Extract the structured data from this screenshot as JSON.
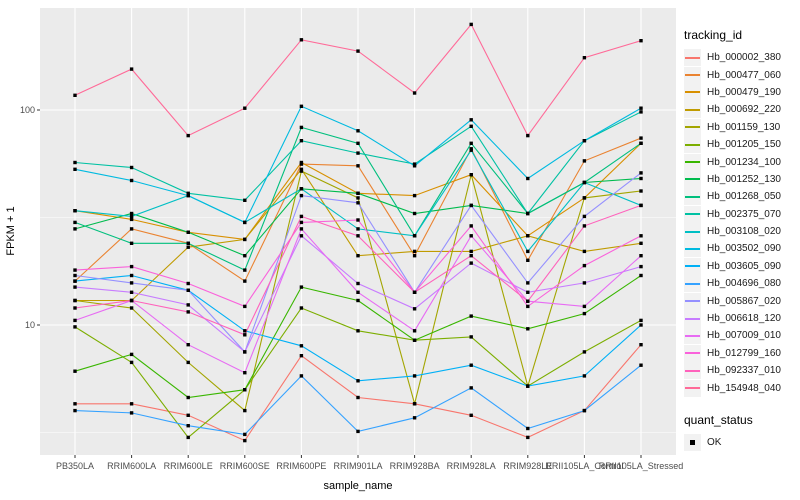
{
  "chart_data": {
    "type": "line",
    "title": "",
    "xlabel": "sample_name",
    "ylabel": "FPKM + 1",
    "x_categories": [
      "PB350LA",
      "RRIM600LA",
      "RRIM600LE",
      "RRIM600SE",
      "RRIM600PE",
      "RRIM901LA",
      "RRIM928BA",
      "RRIM928LA",
      "RRIM928LE",
      "RRII105LA_Control",
      "RRII105LA_Stressed"
    ],
    "y_scale": "log10",
    "y_ticks": [
      10,
      100
    ],
    "y_minor_ticks": [
      3.162,
      31.62
    ],
    "y_range": [
      2.5,
      300
    ],
    "grid": true,
    "legend_position": "right",
    "legend_title": "tracking_id",
    "point": {
      "shape": "square",
      "color": "#000000",
      "size": 3.4
    },
    "panel_color": "#EBEBEB",
    "grid_color": "#FFFFFF",
    "legend_key_color": "#F2F2F2",
    "series": [
      {
        "name": "Hb_000002_380",
        "color": "#F8766D",
        "values": [
          4.3,
          4.3,
          3.8,
          2.9,
          7.2,
          4.6,
          4.3,
          3.8,
          3.0,
          4.0,
          8.1
        ]
      },
      {
        "name": "Hb_000477_060",
        "color": "#EA8331",
        "values": [
          16,
          28,
          24,
          16,
          56,
          55,
          21,
          66,
          20,
          58,
          74
        ]
      },
      {
        "name": "Hb_000479_190",
        "color": "#D89000",
        "values": [
          34,
          31,
          27,
          25,
          57,
          41,
          40,
          50,
          26,
          39,
          70
        ]
      },
      {
        "name": "Hb_000692_220",
        "color": "#C09B00",
        "values": [
          13,
          13,
          23,
          25,
          53,
          21,
          22,
          22,
          26,
          22,
          24
        ]
      },
      {
        "name": "Hb_001159_130",
        "color": "#A3A500",
        "values": [
          13,
          12,
          6.7,
          4.0,
          52,
          39,
          4.3,
          50,
          5.2,
          39,
          42
        ]
      },
      {
        "name": "Hb_001205_150",
        "color": "#7CAE00",
        "values": [
          9.8,
          6.7,
          3.0,
          5.0,
          12,
          9.4,
          8.5,
          8.8,
          5.2,
          7.5,
          10.5
        ]
      },
      {
        "name": "Hb_001234_100",
        "color": "#39B600",
        "values": [
          6.1,
          7.3,
          4.6,
          5.0,
          15,
          13,
          8.5,
          11,
          9.6,
          11.3,
          17
        ]
      },
      {
        "name": "Hb_001252_130",
        "color": "#00BB4E",
        "values": [
          28,
          33,
          27,
          21,
          43,
          41,
          33,
          36,
          33,
          46,
          48
        ]
      },
      {
        "name": "Hb_001268_050",
        "color": "#00BF7D",
        "values": [
          30,
          24,
          24,
          18,
          83,
          70,
          26,
          70,
          33,
          46,
          70
        ]
      },
      {
        "name": "Hb_002375_070",
        "color": "#00C1A3",
        "values": [
          57,
          54,
          41,
          38,
          72,
          63,
          56,
          84,
          33,
          72,
          98
        ]
      },
      {
        "name": "Hb_003108_020",
        "color": "#00BFC4",
        "values": [
          34,
          32,
          40,
          30,
          43,
          28,
          26,
          65,
          22,
          46,
          36
        ]
      },
      {
        "name": "Hb_003502_090",
        "color": "#00BAE0",
        "values": [
          53,
          47,
          40,
          30,
          104,
          80,
          55,
          90,
          48,
          72,
          102
        ]
      },
      {
        "name": "Hb_003605_090",
        "color": "#00B0F6",
        "values": [
          16,
          17,
          14.5,
          9.4,
          8.0,
          5.5,
          5.8,
          6.5,
          5.2,
          5.8,
          10
        ]
      },
      {
        "name": "Hb_004696_080",
        "color": "#35A2FF",
        "values": [
          4.0,
          3.9,
          3.4,
          3.1,
          5.8,
          3.2,
          3.7,
          5.1,
          3.3,
          4.0,
          6.5
        ]
      },
      {
        "name": "Hb_005867_020",
        "color": "#9590FF",
        "values": [
          17,
          15.7,
          14.5,
          7.5,
          40,
          37,
          14.2,
          36,
          15.7,
          32,
          51
        ]
      },
      {
        "name": "Hb_006618_120",
        "color": "#C77CFF",
        "values": [
          15,
          14.2,
          12.4,
          7.5,
          26,
          15.6,
          11.9,
          19.4,
          14.2,
          15.7,
          18.7
        ]
      },
      {
        "name": "Hb_007009_010",
        "color": "#E76BF3",
        "values": [
          10.5,
          13,
          8.1,
          6.0,
          28,
          14.2,
          9.4,
          26,
          12.9,
          12.2,
          21
        ]
      },
      {
        "name": "Hb_012799_160",
        "color": "#FA62DB",
        "values": [
          18,
          18.7,
          15.6,
          12.2,
          30,
          30.8,
          14.2,
          28.9,
          12.2,
          18.9,
          26
        ]
      },
      {
        "name": "Hb_092337_010",
        "color": "#FF62BC",
        "values": [
          12,
          13,
          11.5,
          9.0,
          32,
          26,
          14.2,
          21,
          12.9,
          28.9,
          36
        ]
      },
      {
        "name": "Hb_154948_040",
        "color": "#FF6A98",
        "values": [
          117,
          155,
          76,
          102,
          212,
          188,
          120,
          250,
          76,
          175,
          210
        ]
      }
    ],
    "legend2": {
      "title": "quant_status",
      "items": [
        {
          "label": "OK"
        }
      ]
    }
  }
}
